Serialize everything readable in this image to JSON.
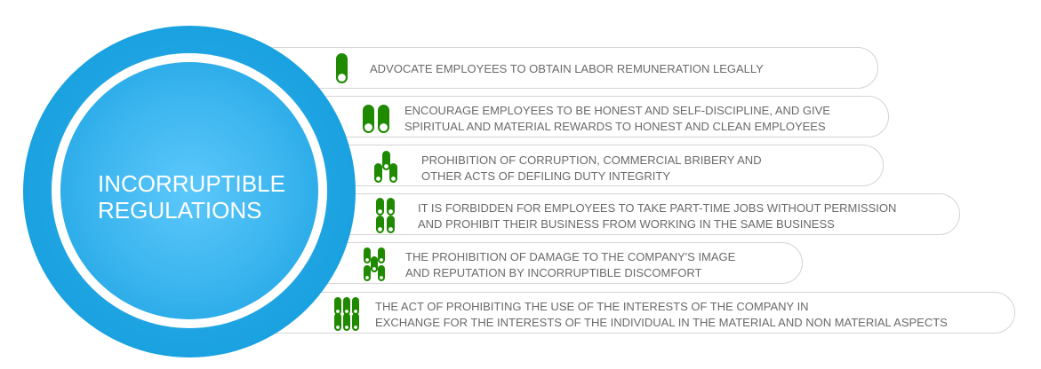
{
  "center": {
    "line1": "INCORRUPTIBLE",
    "line2": "REGULATIONS"
  },
  "colors": {
    "circle": "#0e9bdc",
    "icon": "#1f8a00",
    "text": "#6a6a6a"
  },
  "items": [
    {
      "icon": "one-cylinder-icon",
      "line1": "ADVOCATE EMPLOYEES TO OBTAIN LABOR REMUNERATION LEGALLY",
      "line2": ""
    },
    {
      "icon": "two-cylinders-icon",
      "line1": "ENCOURAGE EMPLOYEES TO BE HONEST AND SELF-DISCIPLINE, AND GIVE",
      "line2": "SPIRITUAL AND MATERIAL REWARDS TO HONEST AND CLEAN EMPLOYEES"
    },
    {
      "icon": "three-cylinders-icon",
      "line1": "PROHIBITION OF CORRUPTION, COMMERCIAL BRIBERY AND",
      "line2": "OTHER ACTS OF DEFILING DUTY INTEGRITY"
    },
    {
      "icon": "four-cylinders-icon",
      "line1": "IT IS FORBIDDEN FOR EMPLOYEES TO TAKE PART-TIME JOBS WITHOUT PERMISSION",
      "line2": "AND PROHIBIT THEIR BUSINESS FROM WORKING IN THE SAME BUSINESS"
    },
    {
      "icon": "five-cylinders-icon",
      "line1": "THE PROHIBITION OF DAMAGE TO THE COMPANY'S IMAGE",
      "line2": "AND REPUTATION BY INCORRUPTIBLE DISCOMFORT"
    },
    {
      "icon": "six-cylinders-icon",
      "line1": "THE ACT OF PROHIBITING THE USE OF THE INTERESTS OF THE COMPANY IN",
      "line2": "EXCHANGE FOR THE INTERESTS OF THE INDIVIDUAL IN THE MATERIAL AND NON MATERIAL ASPECTS"
    }
  ]
}
